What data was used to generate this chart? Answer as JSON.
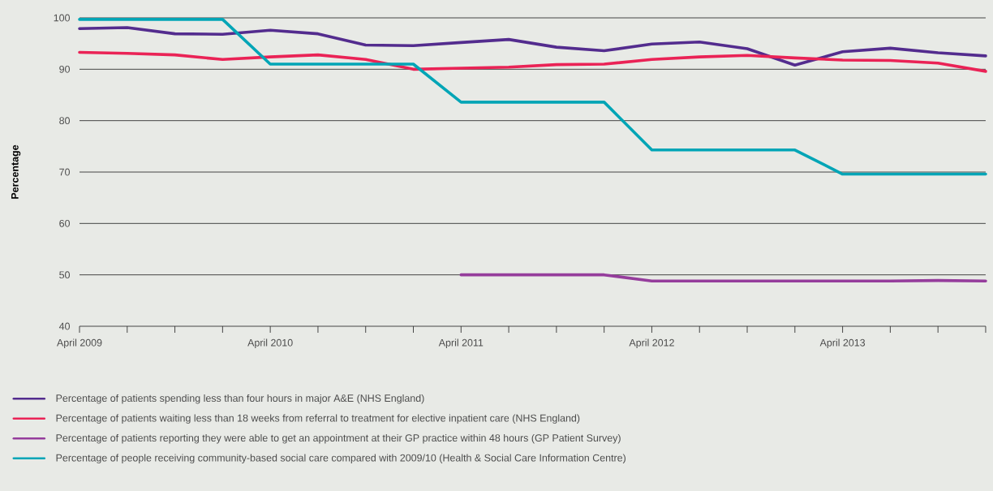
{
  "chart_data": {
    "type": "line",
    "ylabel": "Percentage",
    "x": [
      "2009-04",
      "2009-07",
      "2009-10",
      "2010-01",
      "2010-04",
      "2010-07",
      "2010-10",
      "2011-01",
      "2011-04",
      "2011-07",
      "2011-10",
      "2012-01",
      "2012-04",
      "2012-07",
      "2012-10",
      "2013-01",
      "2013-04",
      "2013-07",
      "2013-10",
      "2014-01"
    ],
    "series": [
      {
        "name": "Percentage of patients spending less than four hours in major A&E (NHS England)",
        "color": "#532c8e",
        "values": [
          97.9,
          98.1,
          96.9,
          96.8,
          97.6,
          96.9,
          94.7,
          94.6,
          95.2,
          95.8,
          94.3,
          93.6,
          94.9,
          95.3,
          94.0,
          90.8,
          93.4,
          94.1,
          93.2,
          92.6
        ]
      },
      {
        "name": "Percentage of patients waiting less than 18 weeks from referral to treatment for elective inpatient care (NHS England)",
        "color": "#ea2356",
        "values": [
          93.3,
          93.1,
          92.8,
          91.9,
          92.4,
          92.8,
          91.9,
          90.0,
          90.2,
          90.4,
          90.9,
          91.0,
          91.9,
          92.4,
          92.7,
          92.2,
          91.8,
          91.7,
          91.2,
          89.6
        ]
      },
      {
        "name": "Percentage of patients reporting they were able to get an appointment at their GP practice within 48 hours (GP Patient Survey)",
        "color": "#953d9c",
        "values": [
          null,
          null,
          null,
          null,
          null,
          null,
          null,
          null,
          50.0,
          50.0,
          50.0,
          50.0,
          48.8,
          48.8,
          48.8,
          48.8,
          48.8,
          48.8,
          48.9,
          48.8
        ]
      },
      {
        "name": "Percentage of people receiving community-based social care compared with 2009/10 (Health & Social Care Information Centre)",
        "color": "#00a5b6",
        "values": [
          99.7,
          99.7,
          99.7,
          99.7,
          91.0,
          91.0,
          91.0,
          91.0,
          83.6,
          83.6,
          83.6,
          83.6,
          74.3,
          74.3,
          74.3,
          74.3,
          69.6,
          69.6,
          69.6,
          69.6
        ]
      }
    ],
    "xlim": [
      "2009-04",
      "2014-01"
    ],
    "xticks": [
      {
        "value": "2009-04",
        "label": "April 2009"
      },
      {
        "value": "2009-07",
        "label": null
      },
      {
        "value": "2009-10",
        "label": null
      },
      {
        "value": "2010-01",
        "label": null
      },
      {
        "value": "2010-04",
        "label": "April 2010"
      },
      {
        "value": "2010-07",
        "label": null
      },
      {
        "value": "2010-10",
        "label": null
      },
      {
        "value": "2011-01",
        "label": null
      },
      {
        "value": "2011-04",
        "label": "April 2011"
      },
      {
        "value": "2011-07",
        "label": null
      },
      {
        "value": "2011-10",
        "label": null
      },
      {
        "value": "2012-01",
        "label": null
      },
      {
        "value": "2012-04",
        "label": "April 2012"
      },
      {
        "value": "2012-07",
        "label": null
      },
      {
        "value": "2012-10",
        "label": null
      },
      {
        "value": "2013-01",
        "label": null
      },
      {
        "value": "2013-04",
        "label": "April 2013"
      },
      {
        "value": "2013-07",
        "label": null
      },
      {
        "value": "2013-10",
        "label": null
      },
      {
        "value": "2014-01",
        "label": null
      }
    ],
    "ylim": [
      40,
      100
    ],
    "yticks": [
      40,
      50,
      60,
      70,
      80,
      90,
      100
    ],
    "grid": "y",
    "legend": "bottom",
    "marker": "none",
    "line_style": "solid"
  }
}
